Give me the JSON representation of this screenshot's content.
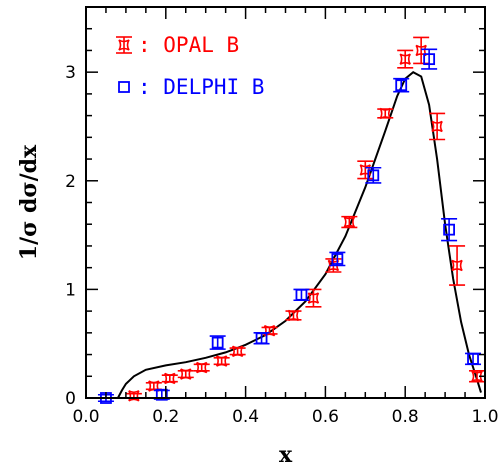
{
  "chart_data": {
    "type": "scatter",
    "xlabel": "x",
    "ylabel": "1/σ dσ/dx",
    "xlim": [
      0.0,
      1.0
    ],
    "ylim": [
      0.0,
      3.6
    ],
    "x_ticks": [
      "0.0",
      "0.2",
      "0.4",
      "0.6",
      "0.8",
      "1.0"
    ],
    "y_ticks": [
      "0",
      "1",
      "2",
      "3"
    ],
    "x_tick_values": [
      0.0,
      0.2,
      0.4,
      0.6,
      0.8,
      1.0
    ],
    "y_tick_values": [
      0,
      1,
      2,
      3
    ],
    "legend_position": "top-left",
    "grid": false,
    "series": [
      {
        "name": "OPAL B",
        "color": "#ff0000",
        "marker": "star-cross",
        "points": [
          {
            "x": 0.12,
            "y": 0.02,
            "err": 0.02
          },
          {
            "x": 0.17,
            "y": 0.11,
            "err": 0.03
          },
          {
            "x": 0.21,
            "y": 0.18,
            "err": 0.03
          },
          {
            "x": 0.25,
            "y": 0.22,
            "err": 0.03
          },
          {
            "x": 0.29,
            "y": 0.28,
            "err": 0.03
          },
          {
            "x": 0.34,
            "y": 0.34,
            "err": 0.03
          },
          {
            "x": 0.38,
            "y": 0.43,
            "err": 0.03
          },
          {
            "x": 0.46,
            "y": 0.62,
            "err": 0.03
          },
          {
            "x": 0.52,
            "y": 0.76,
            "err": 0.04
          },
          {
            "x": 0.57,
            "y": 0.92,
            "err": 0.08
          },
          {
            "x": 0.62,
            "y": 1.22,
            "err": 0.06
          },
          {
            "x": 0.66,
            "y": 1.62,
            "err": 0.05
          },
          {
            "x": 0.7,
            "y": 2.1,
            "err": 0.08
          },
          {
            "x": 0.75,
            "y": 2.62,
            "err": 0.04
          },
          {
            "x": 0.8,
            "y": 3.12,
            "err": 0.08
          },
          {
            "x": 0.84,
            "y": 3.2,
            "err": 0.12
          },
          {
            "x": 0.88,
            "y": 2.5,
            "err": 0.12
          },
          {
            "x": 0.93,
            "y": 1.22,
            "err": 0.18
          },
          {
            "x": 0.98,
            "y": 0.2,
            "err": 0.05
          }
        ]
      },
      {
        "name": "DELPHI B",
        "color": "#0000ff",
        "marker": "open-square",
        "points": [
          {
            "x": 0.05,
            "y": 0.0,
            "err": 0.03
          },
          {
            "x": 0.19,
            "y": 0.03,
            "err": 0.04
          },
          {
            "x": 0.33,
            "y": 0.51,
            "err": 0.06
          },
          {
            "x": 0.44,
            "y": 0.55,
            "err": 0.05
          },
          {
            "x": 0.54,
            "y": 0.95,
            "err": 0.05
          },
          {
            "x": 0.63,
            "y": 1.28,
            "err": 0.06
          },
          {
            "x": 0.72,
            "y": 2.05,
            "err": 0.07
          },
          {
            "x": 0.79,
            "y": 2.88,
            "err": 0.06
          },
          {
            "x": 0.86,
            "y": 3.12,
            "err": 0.09
          },
          {
            "x": 0.91,
            "y": 1.55,
            "err": 0.1
          },
          {
            "x": 0.97,
            "y": 0.36,
            "err": 0.05
          }
        ]
      }
    ],
    "curve": {
      "color": "#000000",
      "x": [
        0.08,
        0.09,
        0.1,
        0.12,
        0.15,
        0.2,
        0.25,
        0.3,
        0.35,
        0.4,
        0.45,
        0.5,
        0.55,
        0.6,
        0.65,
        0.7,
        0.75,
        0.78,
        0.8,
        0.82,
        0.84,
        0.86,
        0.88,
        0.9,
        0.92,
        0.94,
        0.96,
        0.98,
        0.99
      ],
      "y": [
        0.0,
        0.07,
        0.13,
        0.2,
        0.26,
        0.3,
        0.33,
        0.37,
        0.42,
        0.49,
        0.58,
        0.71,
        0.89,
        1.14,
        1.49,
        1.94,
        2.46,
        2.78,
        2.94,
        3.0,
        2.96,
        2.7,
        2.2,
        1.6,
        1.1,
        0.7,
        0.4,
        0.17,
        0.05
      ]
    }
  }
}
